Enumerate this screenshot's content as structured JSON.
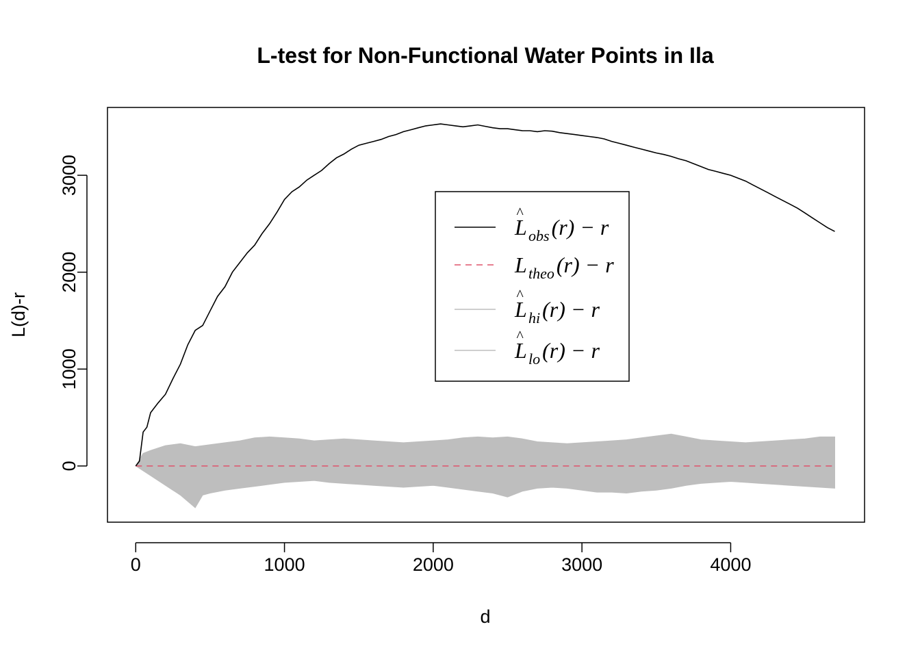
{
  "chart_data": {
    "type": "line",
    "title": "L-test for Non-Functional Water Points in Ila",
    "xlabel": "d",
    "ylabel": "L(d)-r",
    "xlim": [
      -190,
      4900
    ],
    "ylim": [
      -580,
      3700
    ],
    "x_ticks": [
      0,
      1000,
      2000,
      3000,
      4000
    ],
    "y_ticks": [
      0,
      1000,
      2000,
      3000
    ],
    "grid": false,
    "legend_position": "center-right",
    "series": [
      {
        "name": "obs",
        "color": "#000000",
        "style": "solid",
        "x": [
          0,
          25,
          50,
          75,
          100,
          150,
          200,
          250,
          300,
          350,
          400,
          450,
          500,
          550,
          600,
          650,
          700,
          750,
          800,
          850,
          900,
          950,
          1000,
          1050,
          1100,
          1150,
          1200,
          1250,
          1300,
          1350,
          1400,
          1450,
          1500,
          1550,
          1600,
          1650,
          1700,
          1750,
          1800,
          1850,
          1900,
          1950,
          2000,
          2050,
          2100,
          2150,
          2200,
          2250,
          2300,
          2350,
          2400,
          2450,
          2500,
          2550,
          2600,
          2650,
          2700,
          2750,
          2800,
          2850,
          2900,
          2950,
          3000,
          3050,
          3100,
          3150,
          3200,
          3250,
          3300,
          3350,
          3400,
          3450,
          3500,
          3550,
          3600,
          3650,
          3700,
          3750,
          3800,
          3850,
          3900,
          3950,
          4000,
          4050,
          4100,
          4150,
          4200,
          4250,
          4300,
          4350,
          4400,
          4450,
          4500,
          4550,
          4600,
          4650,
          4700
        ],
        "y": [
          0,
          50,
          350,
          400,
          550,
          650,
          740,
          900,
          1050,
          1250,
          1400,
          1450,
          1600,
          1750,
          1850,
          2000,
          2100,
          2200,
          2280,
          2400,
          2500,
          2620,
          2750,
          2830,
          2880,
          2950,
          3000,
          3050,
          3120,
          3180,
          3220,
          3270,
          3310,
          3330,
          3350,
          3370,
          3400,
          3420,
          3450,
          3470,
          3490,
          3510,
          3520,
          3530,
          3520,
          3510,
          3500,
          3510,
          3520,
          3505,
          3490,
          3480,
          3480,
          3470,
          3460,
          3460,
          3450,
          3460,
          3455,
          3440,
          3430,
          3420,
          3410,
          3400,
          3390,
          3375,
          3350,
          3330,
          3310,
          3290,
          3270,
          3250,
          3230,
          3215,
          3195,
          3170,
          3150,
          3120,
          3090,
          3060,
          3040,
          3020,
          3000,
          2970,
          2940,
          2900,
          2860,
          2820,
          2780,
          2740,
          2700,
          2660,
          2610,
          2560,
          2510,
          2460,
          2420
        ]
      },
      {
        "name": "theo",
        "color": "#DF536B",
        "style": "dashed",
        "x": [
          0,
          4700
        ],
        "y": [
          0,
          0
        ]
      },
      {
        "name": "hi",
        "color": "#BEBEBE",
        "style": "solid",
        "x": [
          50,
          100,
          200,
          300,
          400,
          500,
          600,
          700,
          800,
          900,
          1000,
          1100,
          1200,
          1300,
          1400,
          1500,
          1600,
          1700,
          1800,
          1900,
          2000,
          2100,
          2200,
          2300,
          2400,
          2500,
          2600,
          2700,
          2800,
          2900,
          3000,
          3100,
          3200,
          3300,
          3400,
          3500,
          3600,
          3700,
          3800,
          3900,
          4000,
          4100,
          4200,
          4300,
          4400,
          4500,
          4600,
          4700
        ],
        "y": [
          130,
          160,
          210,
          230,
          200,
          220,
          240,
          260,
          290,
          300,
          290,
          280,
          260,
          270,
          280,
          270,
          260,
          250,
          240,
          250,
          260,
          270,
          290,
          300,
          290,
          300,
          280,
          250,
          240,
          230,
          240,
          250,
          260,
          270,
          290,
          310,
          330,
          300,
          270,
          260,
          250,
          240,
          250,
          260,
          270,
          280,
          300,
          300
        ]
      },
      {
        "name": "lo",
        "color": "#BEBEBE",
        "style": "solid",
        "x": [
          0,
          100,
          200,
          300,
          400,
          450,
          500,
          600,
          700,
          800,
          900,
          1000,
          1100,
          1200,
          1300,
          1400,
          1500,
          1600,
          1700,
          1800,
          1900,
          2000,
          2100,
          2200,
          2300,
          2400,
          2500,
          2600,
          2700,
          2800,
          2900,
          3000,
          3100,
          3200,
          3300,
          3400,
          3500,
          3600,
          3700,
          3800,
          3900,
          4000,
          4100,
          4200,
          4300,
          4400,
          4500,
          4600,
          4700
        ],
        "y": [
          0,
          -100,
          -200,
          -300,
          -430,
          -300,
          -280,
          -250,
          -230,
          -210,
          -190,
          -170,
          -160,
          -150,
          -170,
          -180,
          -190,
          -200,
          -210,
          -220,
          -210,
          -200,
          -220,
          -240,
          -260,
          -280,
          -320,
          -260,
          -230,
          -220,
          -230,
          -250,
          -270,
          -270,
          -280,
          -260,
          -250,
          -230,
          -200,
          -180,
          -170,
          -160,
          -170,
          -180,
          -190,
          -200,
          -210,
          -220,
          -230
        ]
      }
    ]
  },
  "legend": {
    "entries": [
      {
        "key": "obs",
        "sub": "obs",
        "color": "#000000",
        "dash": ""
      },
      {
        "key": "theo",
        "sub": "theo",
        "color": "#DF536B",
        "dash": "9 7"
      },
      {
        "key": "hi",
        "sub": "hi",
        "color": "#BEBEBE",
        "dash": ""
      },
      {
        "key": "lo",
        "sub": "lo",
        "color": "#BEBEBE",
        "dash": ""
      }
    ]
  }
}
